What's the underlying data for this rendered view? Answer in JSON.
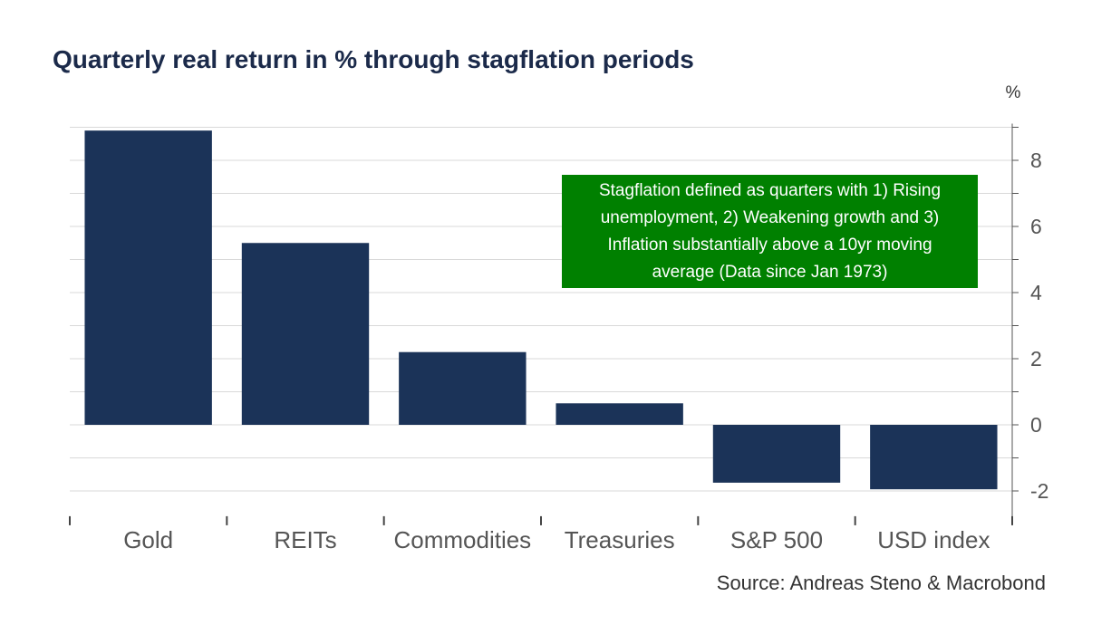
{
  "chart_data": {
    "type": "bar",
    "title": "Quarterly real return in % through stagflation periods",
    "ylabel": "%",
    "categories": [
      "Gold",
      "REITs",
      "Commodities",
      "Treasuries",
      "S&P 500",
      "USD index"
    ],
    "values": [
      8.9,
      5.5,
      2.2,
      0.65,
      -1.75,
      -1.95
    ],
    "ylim": [
      -2.6,
      9.0
    ],
    "yticks": [
      -2,
      0,
      2,
      4,
      6,
      8
    ],
    "grid": true,
    "y_axis_side": "right",
    "bar_color": "#1b3358",
    "annotation": "Stagflation defined as quarters with 1) Rising unemployment, 2) Weakening growth and 3) Inflation substantially above a 10yr moving average (Data since Jan 1973)",
    "annotation_color": "#008000",
    "source": "Source: Andreas Steno & Macrobond"
  }
}
